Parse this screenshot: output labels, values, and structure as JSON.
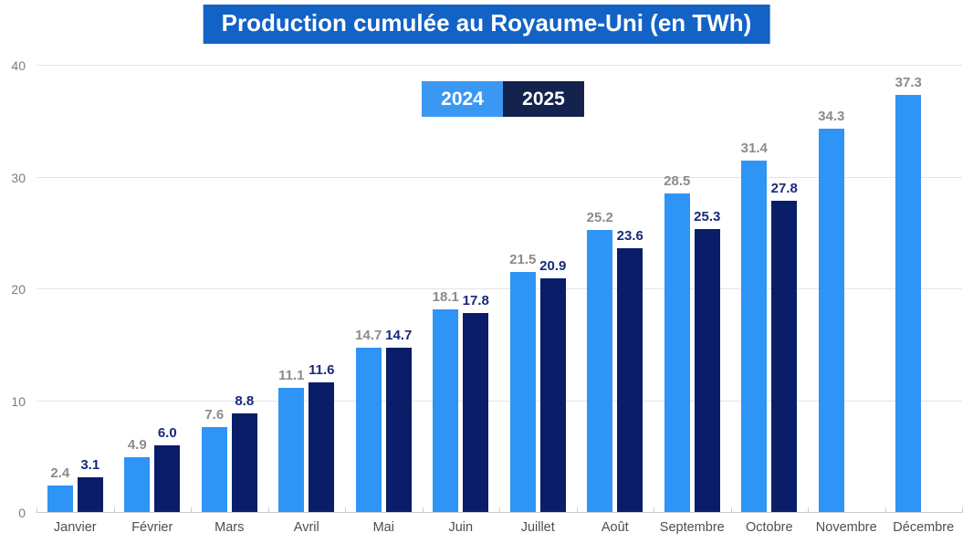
{
  "title": "Production cumulée au Royaume-Uni (en TWh)",
  "legend": {
    "items": [
      {
        "label": "2024",
        "bg": "#3b98f2",
        "text_color": "#ffffff"
      },
      {
        "label": "2025",
        "bg": "#13234e",
        "text_color": "#ffffff"
      }
    ]
  },
  "chart_data": {
    "type": "bar",
    "title": "Production cumulée au Royaume-Uni (en TWh)",
    "categories": [
      "Janvier",
      "Février",
      "Mars",
      "Avril",
      "Mai",
      "Juin",
      "Juillet",
      "Août",
      "Septembre",
      "Octobre",
      "Novembre",
      "Décembre"
    ],
    "series": [
      {
        "name": "2024",
        "color": "#2e94f6",
        "label_color": "#8b8b8b",
        "values": [
          2.4,
          4.9,
          7.6,
          11.1,
          14.7,
          18.1,
          21.5,
          25.2,
          28.5,
          31.4,
          34.3,
          37.3
        ]
      },
      {
        "name": "2025",
        "color": "#0a1d68",
        "label_color": "#182a78",
        "values": [
          3.1,
          6.0,
          8.8,
          11.6,
          14.7,
          17.8,
          20.9,
          23.6,
          25.3,
          27.8,
          null,
          null
        ]
      }
    ],
    "xlabel": "",
    "ylabel": "",
    "ylim": [
      0,
      40
    ],
    "yticks": [
      0,
      10,
      20,
      30,
      40
    ],
    "grid": true,
    "legend_position": "top-center",
    "value_labels": true,
    "value_decimals": 1
  },
  "style": {
    "title_bg": "#1362c5",
    "title_text": "#ffffff",
    "gridline_color": "#e4e4e4",
    "axis_color": "#cccccc",
    "ytick_color": "#7c7c7c",
    "month_label_color": "#4d4d58",
    "background": "#ffffff"
  }
}
